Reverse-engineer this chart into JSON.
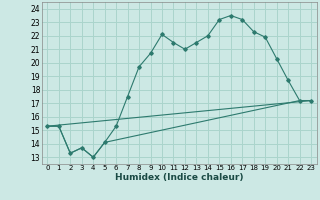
{
  "xlabel": "Humidex (Indice chaleur)",
  "bg_color": "#cce8e4",
  "grid_color": "#aad4cc",
  "line_color": "#2d7a6e",
  "xlim": [
    -0.5,
    23.5
  ],
  "ylim": [
    12.5,
    24.5
  ],
  "xticks": [
    0,
    1,
    2,
    3,
    4,
    5,
    6,
    7,
    8,
    9,
    10,
    11,
    12,
    13,
    14,
    15,
    16,
    17,
    18,
    19,
    20,
    21,
    22,
    23
  ],
  "yticks": [
    13,
    14,
    15,
    16,
    17,
    18,
    19,
    20,
    21,
    22,
    23,
    24
  ],
  "line1_x": [
    0,
    1,
    2,
    3,
    4,
    5,
    6,
    7,
    8,
    9,
    10,
    11,
    12,
    13,
    14,
    15,
    16,
    17,
    18,
    19,
    20,
    21,
    22,
    23
  ],
  "line1_y": [
    15.3,
    15.3,
    13.3,
    13.7,
    13.0,
    14.1,
    15.3,
    17.5,
    19.7,
    20.7,
    22.1,
    21.5,
    21.0,
    21.5,
    22.0,
    23.2,
    23.5,
    23.2,
    22.3,
    21.9,
    20.3,
    18.7,
    17.2,
    17.2
  ],
  "line2_x": [
    0,
    1,
    2,
    3,
    4,
    5,
    22,
    23
  ],
  "line2_y": [
    15.3,
    15.3,
    13.3,
    13.7,
    13.0,
    14.1,
    17.2,
    17.2
  ],
  "line3_x": [
    0,
    23
  ],
  "line3_y": [
    15.3,
    17.2
  ]
}
